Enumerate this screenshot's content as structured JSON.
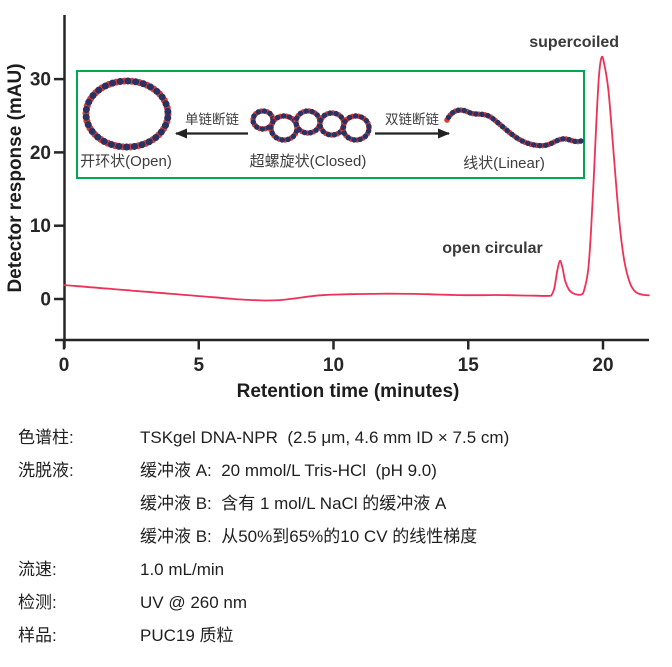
{
  "chart_data": {
    "type": "line",
    "title": "",
    "xlabel": "Retention time (minutes)",
    "ylabel": "Detector response (mAU)",
    "x_ticks": [
      0,
      5,
      10,
      15,
      20
    ],
    "y_ticks": [
      0,
      10,
      20,
      30
    ],
    "xlim": [
      0,
      21.7
    ],
    "ylim": [
      -5,
      36
    ],
    "grid": false,
    "line_color": "#ee3157",
    "axis_color": "#262626",
    "series": [
      {
        "name": "detector-response",
        "x": [
          0,
          0.5,
          1,
          1.5,
          2,
          2.5,
          3,
          3.5,
          4,
          4.5,
          5,
          5.5,
          6,
          6.5,
          7,
          7.5,
          8,
          8.5,
          9,
          9.5,
          10,
          11,
          12,
          13,
          13.5,
          14,
          14.5,
          15,
          15.5,
          16,
          16.5,
          17,
          17.5,
          18,
          18.1,
          18.2,
          18.3,
          18.4,
          18.5,
          18.6,
          18.75,
          18.9,
          19.05,
          19.2,
          19.3,
          19.45,
          19.55,
          19.65,
          19.75,
          19.85,
          19.95,
          20.05,
          20.2,
          20.35,
          20.5,
          20.65,
          20.8,
          21.0,
          21.2,
          21.45,
          21.7
        ],
        "y": [
          1.9,
          1.75,
          1.6,
          1.45,
          1.3,
          1.15,
          1.0,
          0.85,
          0.7,
          0.55,
          0.4,
          0.25,
          0.1,
          -0.05,
          -0.15,
          -0.2,
          -0.15,
          0.05,
          0.3,
          0.5,
          0.6,
          0.68,
          0.72,
          0.7,
          0.65,
          0.6,
          0.55,
          0.52,
          0.52,
          0.55,
          0.52,
          0.48,
          0.45,
          0.42,
          0.6,
          1.6,
          3.8,
          5.2,
          4.2,
          2.4,
          1.2,
          0.75,
          0.6,
          0.62,
          1.2,
          4.0,
          9.0,
          16.0,
          24.0,
          30.5,
          33.0,
          32.0,
          28.5,
          22.0,
          15.0,
          9.0,
          5.0,
          2.2,
          1.0,
          0.6,
          0.5
        ]
      }
    ],
    "annotations": [
      {
        "text": "supercoiled",
        "x": 18.93,
        "y": 34.4
      },
      {
        "text": "open circular",
        "x": 15.9,
        "y": 6.3
      }
    ]
  },
  "inset": {
    "border_color": "#00a94f",
    "dna_red": "#df3b30",
    "dna_navy": "#2a3263",
    "labels": {
      "open": "开环状(Open)",
      "closed": "超螺旋状(Closed)",
      "linear": "线状(Linear)",
      "single_strand_break": "单链断链",
      "double_strand_break": "双链断链"
    }
  },
  "conditions": {
    "rows": [
      {
        "label": "色谱柱:",
        "value": "TSKgel DNA-NPR  (2.5 μm, 4.6 mm ID × 7.5 cm)"
      },
      {
        "label": "洗脱液:",
        "value": "缓冲液 A:  20 mmol/L Tris-HCl  (pH 9.0)"
      },
      {
        "label": "",
        "value": "缓冲液 B:  含有 1 mol/L NaCl 的缓冲液 A"
      },
      {
        "label": "",
        "value": "缓冲液 B:  从50%到65%的10 CV 的线性梯度"
      },
      {
        "label": "流速:",
        "value": "1.0 mL/min"
      },
      {
        "label": "检测:",
        "value": "UV @ 260 nm"
      },
      {
        "label": "样品:",
        "value": "PUC19 质粒"
      }
    ]
  }
}
